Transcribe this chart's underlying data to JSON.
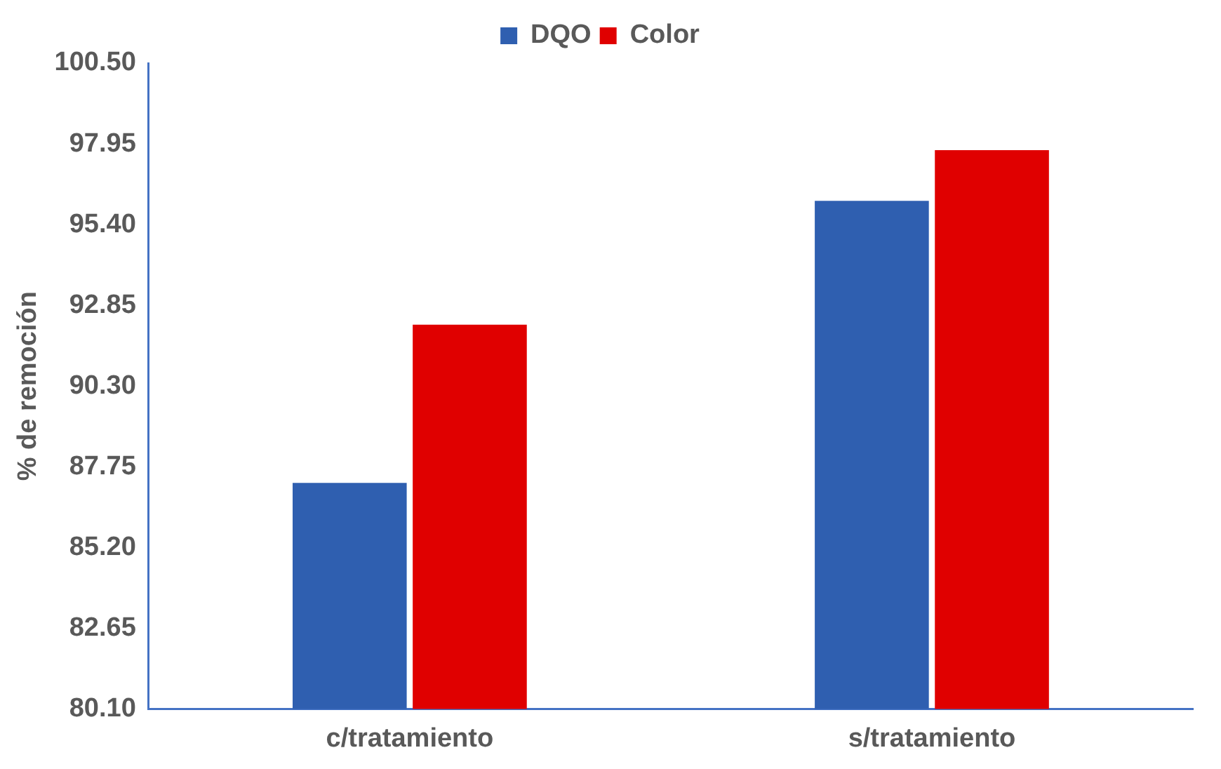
{
  "chart_data": {
    "type": "bar",
    "ylabel": "% de remoción",
    "categories": [
      "c/tratamiento",
      "s/tratamiento"
    ],
    "series": [
      {
        "name": "DQO",
        "color": "#2f5fb0",
        "values": [
          87.24,
          96.15
        ]
      },
      {
        "name": "Color",
        "color": "#e00000",
        "values": [
          92.24,
          97.75
        ]
      }
    ],
    "ylim": [
      80.1,
      100.5
    ],
    "yticks": [
      {
        "value": 80.1,
        "label": "80.10"
      },
      {
        "value": 82.65,
        "label": "82.65"
      },
      {
        "value": 85.2,
        "label": "85.20"
      },
      {
        "value": 87.75,
        "label": "87.75"
      },
      {
        "value": 90.3,
        "label": "90.30"
      },
      {
        "value": 92.85,
        "label": "92.85"
      },
      {
        "value": 95.4,
        "label": "95.40"
      },
      {
        "value": 97.95,
        "label": "97.95"
      },
      {
        "value": 100.5,
        "label": "100.50"
      }
    ],
    "grid": false,
    "legend": "top"
  }
}
